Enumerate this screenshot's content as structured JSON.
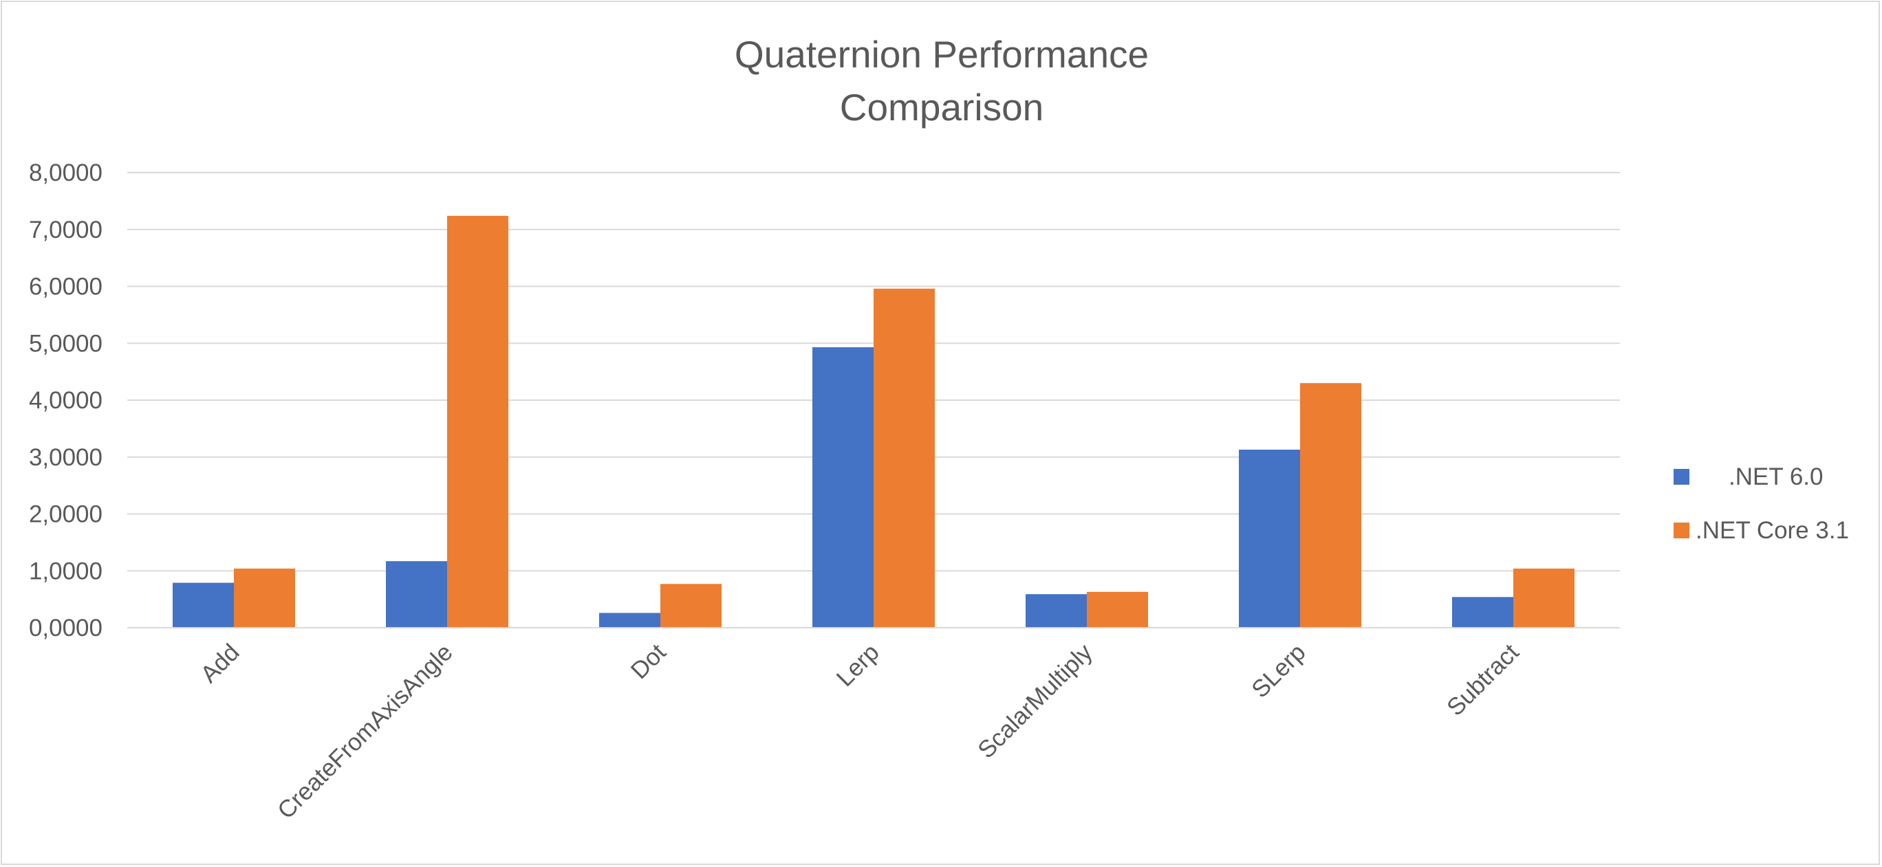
{
  "chart_data": {
    "type": "bar",
    "title": [
      "Quaternion Performance",
      "Comparison"
    ],
    "categories": [
      "Add",
      "CreateFromAxisAngle",
      "Dot",
      "Lerp",
      "ScalarMultiply",
      "SLerp",
      "Subtract"
    ],
    "series": [
      {
        "name": ".NET 6.0",
        "color": "#4472c4",
        "values": [
          0.79,
          1.17,
          0.26,
          4.93,
          0.59,
          3.13,
          0.54
        ]
      },
      {
        "name": ".NET Core 3.1",
        "color": "#ed7d31",
        "values": [
          1.04,
          7.24,
          0.77,
          5.96,
          0.63,
          4.3,
          1.04
        ]
      }
    ],
    "ylim": [
      0,
      8
    ],
    "yticks": [
      "0,0000",
      "1,0000",
      "2,0000",
      "3,0000",
      "4,0000",
      "5,0000",
      "6,0000",
      "7,0000",
      "8,0000"
    ],
    "grid": true,
    "legend_position": "right",
    "xlabel": "",
    "ylabel": ""
  }
}
